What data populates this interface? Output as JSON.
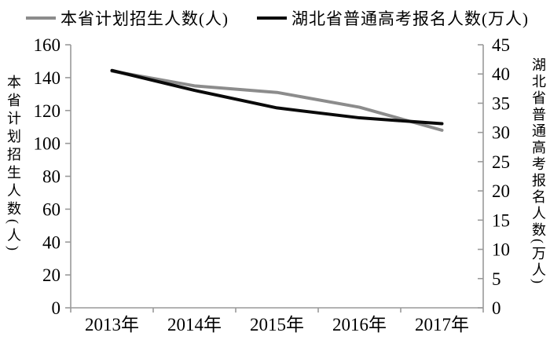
{
  "chart_data": {
    "type": "line",
    "categories": [
      "2013年",
      "2014年",
      "2015年",
      "2016年",
      "2017年"
    ],
    "series": [
      {
        "name": "本省计划招生人数(人)",
        "axis": "left",
        "color": "#8c8c8c",
        "values": [
          144,
          135,
          131,
          122,
          108
        ]
      },
      {
        "name": "湖北省普通高考报名人数(万人)",
        "axis": "right",
        "color": "#0a0a0a",
        "values": [
          40.6,
          37.2,
          34.2,
          32.5,
          31.5
        ]
      }
    ],
    "left_axis": {
      "title": "本省计划招生人数(人)",
      "min": 0,
      "max": 160,
      "step": 20,
      "ticks": [
        0,
        20,
        40,
        60,
        80,
        100,
        120,
        140,
        160
      ]
    },
    "right_axis": {
      "title": "湖北省普通高考报名人数(万人)",
      "min": 0,
      "max": 45,
      "step": 5,
      "ticks": [
        0,
        5,
        10,
        15,
        20,
        25,
        30,
        35,
        40,
        45
      ]
    },
    "x_axis": {
      "label": ""
    },
    "grid": false,
    "legend_position": "top",
    "axis_color": "#9a9a9a",
    "tick_label_color": "#000000"
  }
}
